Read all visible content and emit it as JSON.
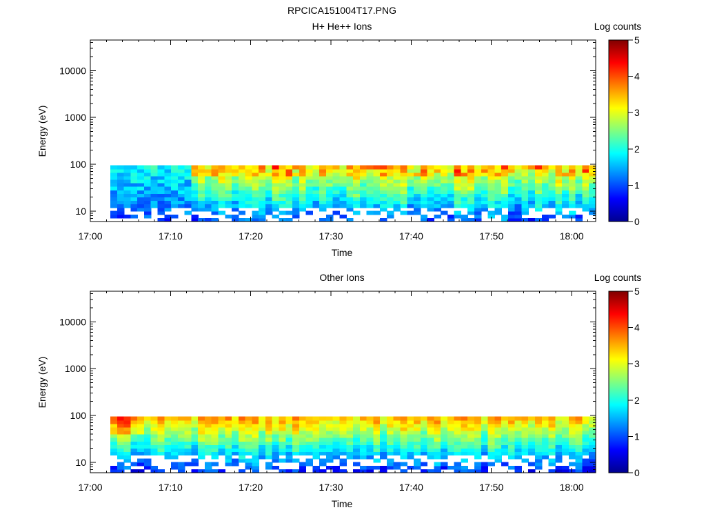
{
  "figure_title": "RPCICA151004T17.PNG",
  "colors": {
    "colormap": [
      "#00008f",
      "#0000ff",
      "#0080ff",
      "#00ffff",
      "#80ff80",
      "#ffff00",
      "#ff8000",
      "#ff0000",
      "#800000"
    ]
  },
  "chart_data": [
    {
      "type": "heatmap",
      "title": "H+ He++ Ions",
      "xlabel": "Time",
      "ylabel": "Energy (eV)",
      "colorbar_label": "Log counts",
      "x_ticks": [
        "17:00",
        "17:10",
        "17:20",
        "17:30",
        "17:40",
        "17:50",
        "18:00"
      ],
      "x_tick_minutes": [
        0,
        10,
        20,
        30,
        40,
        50,
        60
      ],
      "xlim_minutes": [
        0,
        63
      ],
      "y_ticks": [
        "10",
        "100",
        "1000",
        "10000"
      ],
      "y_tick_values": [
        10,
        100,
        1000,
        10000
      ],
      "y_scale": "log",
      "ylim": [
        6,
        45000
      ],
      "colorbar_ticks": [
        "0",
        "1",
        "2",
        "3",
        "4",
        "5"
      ],
      "colorbar_range": [
        0,
        5
      ],
      "data_time_range_minutes": [
        2.5,
        63
      ],
      "data_energy_range_ev": [
        6,
        95
      ],
      "seed": 17
    },
    {
      "type": "heatmap",
      "title": "Other Ions",
      "xlabel": "Time",
      "ylabel": "Energy (eV)",
      "colorbar_label": "Log counts",
      "x_ticks": [
        "17:00",
        "17:10",
        "17:20",
        "17:30",
        "17:40",
        "17:50",
        "18:00"
      ],
      "x_tick_minutes": [
        0,
        10,
        20,
        30,
        40,
        50,
        60
      ],
      "xlim_minutes": [
        0,
        63
      ],
      "y_ticks": [
        "10",
        "100",
        "1000",
        "10000"
      ],
      "y_tick_values": [
        10,
        100,
        1000,
        10000
      ],
      "y_scale": "log",
      "ylim": [
        6,
        45000
      ],
      "colorbar_ticks": [
        "0",
        "1",
        "2",
        "3",
        "4",
        "5"
      ],
      "colorbar_range": [
        0,
        5
      ],
      "data_time_range_minutes": [
        2.5,
        63
      ],
      "data_energy_range_ev": [
        6,
        95
      ],
      "seed": 41
    }
  ]
}
